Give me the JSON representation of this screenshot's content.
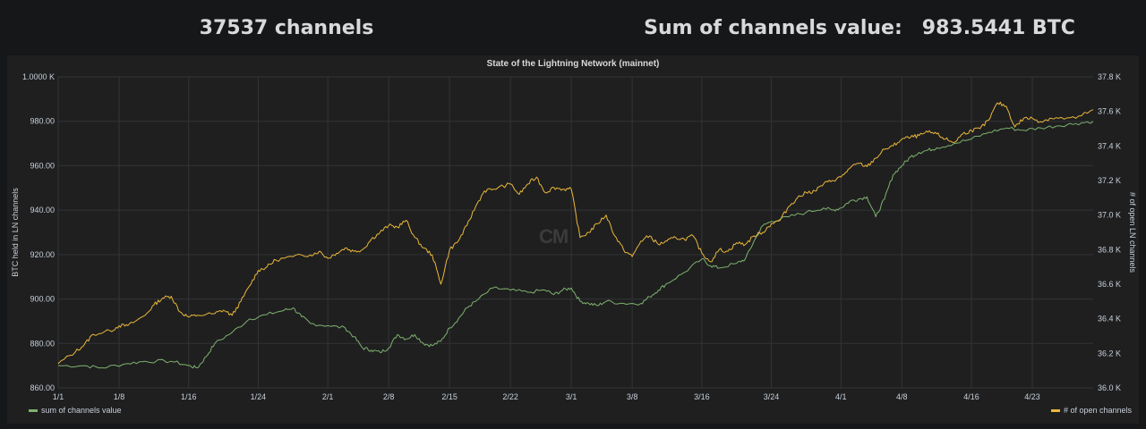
{
  "header": {
    "channels_text": "37537 channels",
    "sum_label": "Sum of channels value:",
    "sum_value": "983.5441 BTC"
  },
  "panel": {
    "watermark": "CM"
  },
  "colors": {
    "green": "#7eb26d",
    "yellow": "#eab839",
    "grid": "#333436",
    "panel_bg": "#1f1f20"
  },
  "chart_data": {
    "type": "line",
    "title": "State of the Lightning Network (mainnet)",
    "ylabel_left": "BTC held in LN channels",
    "ylabel_right": "# of open LN channels",
    "xlabel": "",
    "x_ticks": [
      "1/1",
      "1/8",
      "1/16",
      "1/24",
      "2/1",
      "2/8",
      "2/15",
      "2/22",
      "3/1",
      "3/8",
      "3/16",
      "3/24",
      "4/1",
      "4/8",
      "4/16",
      "4/23"
    ],
    "x_tick_days": [
      0,
      7,
      15,
      23,
      31,
      38,
      45,
      52,
      59,
      66,
      74,
      82,
      90,
      97,
      105,
      112
    ],
    "x_range_days": [
      0,
      119
    ],
    "y_left_ticks": [
      "860.00",
      "880.00",
      "900.00",
      "920.00",
      "940.00",
      "960.00",
      "980.00",
      "1.0000 K"
    ],
    "y_left_range": [
      860,
      1000
    ],
    "y_right_ticks": [
      "36.0 K",
      "36.2 K",
      "36.4 K",
      "36.6 K",
      "36.8 K",
      "37.0 K",
      "37.2 K",
      "37.4 K",
      "37.6 K",
      "37.8 K"
    ],
    "y_right_range": [
      36000,
      37800
    ],
    "grid": true,
    "legend_position": "bottom",
    "series": [
      {
        "name": "sum of channels value",
        "axis": "left",
        "points": [
          [
            0,
            870
          ],
          [
            3,
            870
          ],
          [
            5,
            869
          ],
          [
            8,
            871
          ],
          [
            10,
            872
          ],
          [
            13,
            872
          ],
          [
            15,
            870
          ],
          [
            16,
            869
          ],
          [
            17,
            874
          ],
          [
            18,
            880
          ],
          [
            20,
            885
          ],
          [
            22,
            891
          ],
          [
            24,
            893
          ],
          [
            26,
            895
          ],
          [
            27,
            896
          ],
          [
            28,
            892
          ],
          [
            29,
            889
          ],
          [
            31,
            888
          ],
          [
            33,
            887
          ],
          [
            34,
            883
          ],
          [
            35,
            878
          ],
          [
            36,
            877
          ],
          [
            37,
            876
          ],
          [
            38,
            878
          ],
          [
            39,
            884
          ],
          [
            40,
            882
          ],
          [
            41,
            884
          ],
          [
            42,
            880
          ],
          [
            43,
            879
          ],
          [
            44,
            881
          ],
          [
            45,
            887
          ],
          [
            46,
            891
          ],
          [
            47,
            896
          ],
          [
            48,
            899
          ],
          [
            50,
            905
          ],
          [
            52,
            904
          ],
          [
            54,
            903
          ],
          [
            56,
            904
          ],
          [
            57,
            902
          ],
          [
            58,
            904
          ],
          [
            59,
            905
          ],
          [
            60,
            899
          ],
          [
            61,
            898
          ],
          [
            62,
            897
          ],
          [
            63,
            899
          ],
          [
            65,
            898
          ],
          [
            67,
            898
          ],
          [
            68,
            901
          ],
          [
            69,
            904
          ],
          [
            70,
            907
          ],
          [
            72,
            912
          ],
          [
            74,
            918
          ],
          [
            75,
            915
          ],
          [
            76,
            914
          ],
          [
            78,
            916
          ],
          [
            79,
            918
          ],
          [
            80,
            926
          ],
          [
            81,
            933
          ],
          [
            82,
            935
          ],
          [
            84,
            937
          ],
          [
            86,
            939
          ],
          [
            88,
            941
          ],
          [
            89,
            940
          ],
          [
            90,
            941
          ],
          [
            91,
            944
          ],
          [
            92,
            945
          ],
          [
            93,
            946
          ],
          [
            94,
            937
          ],
          [
            95,
            945
          ],
          [
            96,
            956
          ],
          [
            97,
            960
          ],
          [
            98,
            964
          ],
          [
            99,
            966
          ],
          [
            100,
            967
          ],
          [
            101,
            968
          ],
          [
            103,
            970
          ],
          [
            105,
            972
          ],
          [
            107,
            975
          ],
          [
            109,
            977
          ],
          [
            111,
            976
          ],
          [
            113,
            977
          ],
          [
            115,
            978
          ],
          [
            117,
            979
          ],
          [
            119,
            980
          ]
        ]
      },
      {
        "name": "# of open channels",
        "axis": "right",
        "points": [
          [
            0,
            36140
          ],
          [
            2,
            36210
          ],
          [
            3,
            36250
          ],
          [
            4,
            36310
          ],
          [
            6,
            36330
          ],
          [
            7,
            36360
          ],
          [
            8,
            36360
          ],
          [
            10,
            36420
          ],
          [
            11,
            36480
          ],
          [
            12,
            36520
          ],
          [
            13,
            36530
          ],
          [
            14,
            36440
          ],
          [
            15,
            36410
          ],
          [
            16,
            36420
          ],
          [
            18,
            36430
          ],
          [
            19,
            36450
          ],
          [
            20,
            36420
          ],
          [
            21,
            36500
          ],
          [
            22,
            36590
          ],
          [
            23,
            36680
          ],
          [
            24,
            36700
          ],
          [
            25,
            36740
          ],
          [
            27,
            36760
          ],
          [
            29,
            36770
          ],
          [
            30,
            36790
          ],
          [
            31,
            36750
          ],
          [
            32,
            36780
          ],
          [
            33,
            36810
          ],
          [
            34,
            36790
          ],
          [
            35,
            36800
          ],
          [
            36,
            36860
          ],
          [
            37,
            36900
          ],
          [
            38,
            36940
          ],
          [
            39,
            36930
          ],
          [
            40,
            36970
          ],
          [
            41,
            36870
          ],
          [
            42,
            36810
          ],
          [
            43,
            36770
          ],
          [
            44,
            36600
          ],
          [
            45,
            36800
          ],
          [
            46,
            36850
          ],
          [
            47,
            36940
          ],
          [
            48,
            37050
          ],
          [
            49,
            37140
          ],
          [
            50,
            37150
          ],
          [
            52,
            37180
          ],
          [
            53,
            37120
          ],
          [
            54,
            37180
          ],
          [
            55,
            37220
          ],
          [
            56,
            37130
          ],
          [
            57,
            37160
          ],
          [
            58,
            37150
          ],
          [
            59,
            37150
          ],
          [
            60,
            36870
          ],
          [
            61,
            36900
          ],
          [
            62,
            36950
          ],
          [
            63,
            37000
          ],
          [
            64,
            36880
          ],
          [
            65,
            36800
          ],
          [
            66,
            36760
          ],
          [
            67,
            36850
          ],
          [
            68,
            36880
          ],
          [
            69,
            36830
          ],
          [
            70,
            36850
          ],
          [
            71,
            36870
          ],
          [
            72,
            36860
          ],
          [
            73,
            36880
          ],
          [
            74,
            36780
          ],
          [
            75,
            36730
          ],
          [
            76,
            36800
          ],
          [
            77,
            36790
          ],
          [
            78,
            36840
          ],
          [
            79,
            36830
          ],
          [
            80,
            36880
          ],
          [
            81,
            36900
          ],
          [
            82,
            36950
          ],
          [
            83,
            36970
          ],
          [
            84,
            37050
          ],
          [
            85,
            37100
          ],
          [
            86,
            37130
          ],
          [
            87,
            37140
          ],
          [
            88,
            37180
          ],
          [
            89,
            37200
          ],
          [
            90,
            37220
          ],
          [
            91,
            37270
          ],
          [
            92,
            37300
          ],
          [
            93,
            37280
          ],
          [
            94,
            37330
          ],
          [
            95,
            37380
          ],
          [
            96,
            37400
          ],
          [
            97,
            37440
          ],
          [
            98,
            37450
          ],
          [
            99,
            37460
          ],
          [
            100,
            37480
          ],
          [
            101,
            37470
          ],
          [
            102,
            37440
          ],
          [
            103,
            37420
          ],
          [
            104,
            37470
          ],
          [
            105,
            37490
          ],
          [
            106,
            37500
          ],
          [
            107,
            37550
          ],
          [
            108,
            37650
          ],
          [
            109,
            37630
          ],
          [
            110,
            37510
          ],
          [
            111,
            37560
          ],
          [
            112,
            37560
          ],
          [
            113,
            37540
          ],
          [
            114,
            37560
          ],
          [
            115,
            37560
          ],
          [
            117,
            37560
          ],
          [
            119,
            37610
          ]
        ]
      }
    ]
  }
}
